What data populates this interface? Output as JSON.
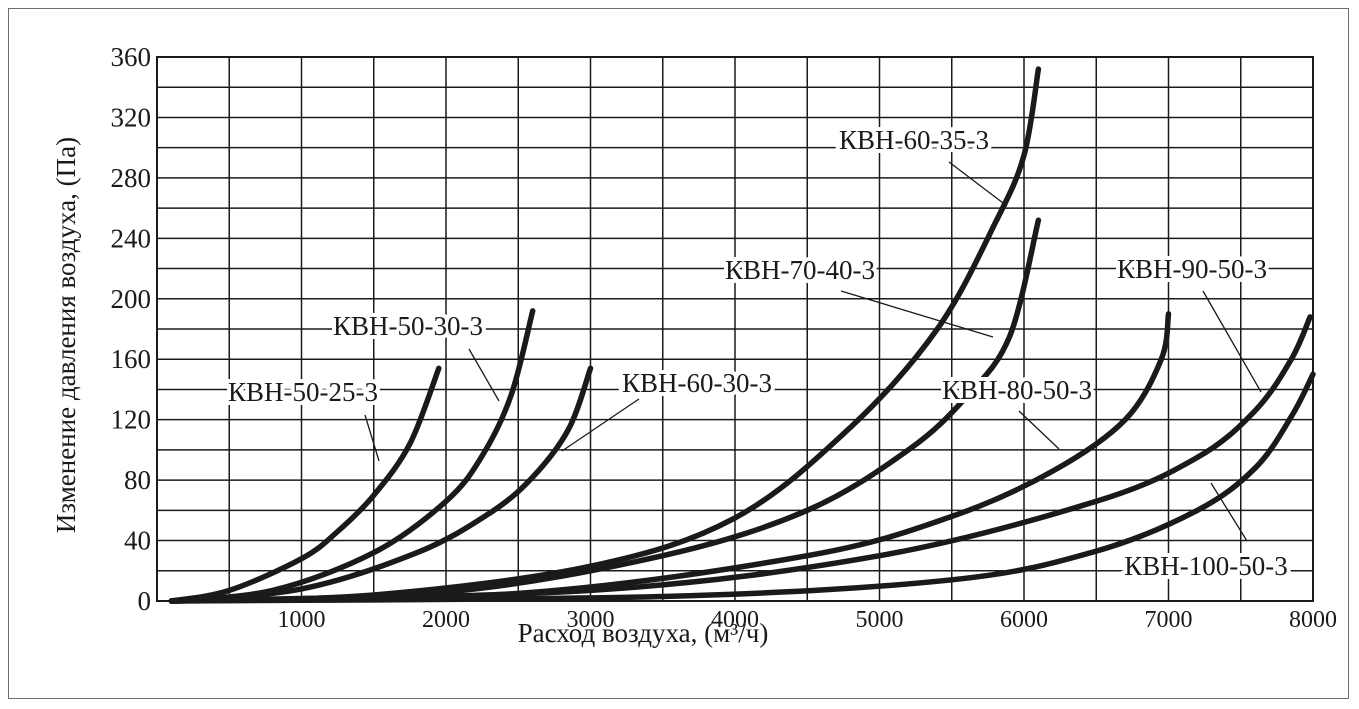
{
  "chart_data": {
    "type": "line",
    "title": "",
    "xlabel": "Расход воздуха, (м³/ч)",
    "ylabel": "Изменение давления воздуха, (Па)",
    "xlim": [
      0,
      8000
    ],
    "ylim": [
      0,
      360
    ],
    "x_ticks": [
      1000,
      2000,
      3000,
      4000,
      5000,
      6000,
      7000,
      8000
    ],
    "y_ticks": [
      0,
      40,
      80,
      120,
      160,
      200,
      240,
      280,
      320,
      360
    ],
    "grid": true,
    "series_color": "#1a1a1a",
    "series": [
      {
        "name": "КВН-50-25-3",
        "x": [
          100,
          500,
          1000,
          1250,
          1500,
          1750,
          1950
        ],
        "y": [
          0,
          7,
          28,
          46,
          70,
          104,
          154
        ]
      },
      {
        "name": "КВН-50-30-3",
        "x": [
          100,
          800,
          1500,
          2000,
          2250,
          2450,
          2600
        ],
        "y": [
          0,
          7,
          32,
          66,
          96,
          136,
          192
        ]
      },
      {
        "name": "КВН-60-30-3",
        "x": [
          100,
          1000,
          1800,
          2300,
          2600,
          2850,
          3000
        ],
        "y": [
          0,
          8,
          32,
          58,
          82,
          114,
          154
        ]
      },
      {
        "name": "КВН-60-35-3",
        "x": [
          100,
          1500,
          3000,
          4000,
          4800,
          5400,
          5800,
          6000,
          6100
        ],
        "y": [
          0,
          4,
          23,
          55,
          115,
          180,
          250,
          295,
          352
        ]
      },
      {
        "name": "КВН-70-40-3",
        "x": [
          100,
          2000,
          3500,
          4500,
          5200,
          5600,
          5900,
          6100
        ],
        "y": [
          0,
          6,
          30,
          60,
          100,
          135,
          175,
          252
        ]
      },
      {
        "name": "КВН-80-50-3",
        "x": [
          100,
          2500,
          4500,
          5500,
          6200,
          6700,
          6950,
          7000
        ],
        "y": [
          0,
          5,
          30,
          56,
          86,
          120,
          160,
          190
        ]
      },
      {
        "name": "КВН-90-50-3",
        "x": [
          100,
          3000,
          5000,
          6500,
          7200,
          7600,
          7850,
          7980
        ],
        "y": [
          0,
          7,
          30,
          66,
          95,
          126,
          160,
          188
        ]
      },
      {
        "name": "КВН-100-50-3",
        "x": [
          100,
          3500,
          5500,
          6500,
          7200,
          7600,
          7850,
          8000
        ],
        "y": [
          0,
          3,
          14,
          33,
          60,
          88,
          122,
          150
        ]
      }
    ]
  }
}
